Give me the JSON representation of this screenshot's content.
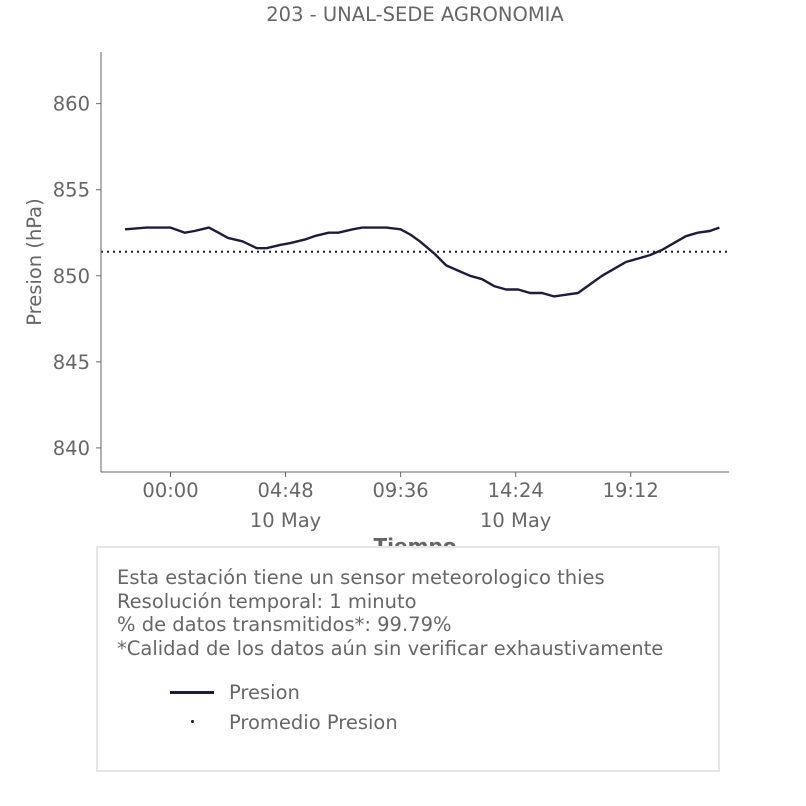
{
  "chart_data": {
    "type": "line",
    "title": "203 - UNAL-SEDE AGRONOMIA",
    "xlabel": "Tiempo",
    "ylabel": "Presion (hPa)",
    "ylim": [
      838.6,
      863
    ],
    "yticks": [
      840,
      845,
      850,
      855,
      860
    ],
    "xlim_hours": [
      -2.9,
      23.3
    ],
    "xticks": [
      {
        "hour": 0.0,
        "label": "00:00",
        "sublabel": ""
      },
      {
        "hour": 4.8,
        "label": "04:48",
        "sublabel": "10 May"
      },
      {
        "hour": 9.6,
        "label": "09:36",
        "sublabel": ""
      },
      {
        "hour": 14.4,
        "label": "14:24",
        "sublabel": "10 May"
      },
      {
        "hour": 19.2,
        "label": "19:12",
        "sublabel": ""
      }
    ],
    "series": [
      {
        "name": "Presion",
        "color": "#1c1c3c",
        "style": "solid",
        "x": [
          -1.9,
          -1.0,
          0.0,
          0.6,
          1.0,
          1.6,
          2.0,
          2.4,
          3.0,
          3.6,
          4.0,
          4.6,
          5.0,
          5.6,
          6.0,
          6.6,
          7.0,
          7.6,
          8.0,
          8.4,
          9.0,
          9.6,
          10.0,
          10.4,
          11.0,
          11.5,
          12.0,
          12.5,
          13.0,
          13.5,
          14.0,
          14.5,
          15.0,
          15.5,
          16.0,
          16.5,
          17.0,
          17.5,
          18.0,
          18.5,
          19.0,
          19.5,
          20.0,
          20.5,
          21.0,
          21.5,
          22.0,
          22.5,
          22.9
        ],
        "y": [
          852.7,
          852.8,
          852.8,
          852.5,
          852.6,
          852.8,
          852.5,
          852.2,
          852.0,
          851.6,
          851.6,
          851.8,
          851.9,
          852.1,
          852.3,
          852.5,
          852.5,
          852.7,
          852.8,
          852.8,
          852.8,
          852.7,
          852.4,
          852.0,
          851.3,
          850.6,
          850.3,
          850.0,
          849.8,
          849.4,
          849.2,
          849.2,
          849.0,
          849.0,
          848.8,
          848.9,
          849.0,
          849.5,
          850.0,
          850.4,
          850.8,
          851.0,
          851.2,
          851.5,
          851.9,
          852.3,
          852.5,
          852.6,
          852.8
        ]
      },
      {
        "name": "Promedio Presion",
        "color": "#1c1c3c",
        "style": "dotted",
        "x": [
          -2.9,
          23.3
        ],
        "y": [
          851.4,
          851.4
        ]
      }
    ],
    "grid": false
  },
  "info": {
    "lines": [
      "Esta estación tiene un sensor meteorologico thies",
      "Resolución temporal: 1 minuto",
      "% de datos transmitidos*: 99.79%",
      "*Calidad de los datos aún sin verificar exhaustivamente"
    ]
  },
  "legend": {
    "items": [
      "Presion",
      "Promedio Presion"
    ]
  }
}
